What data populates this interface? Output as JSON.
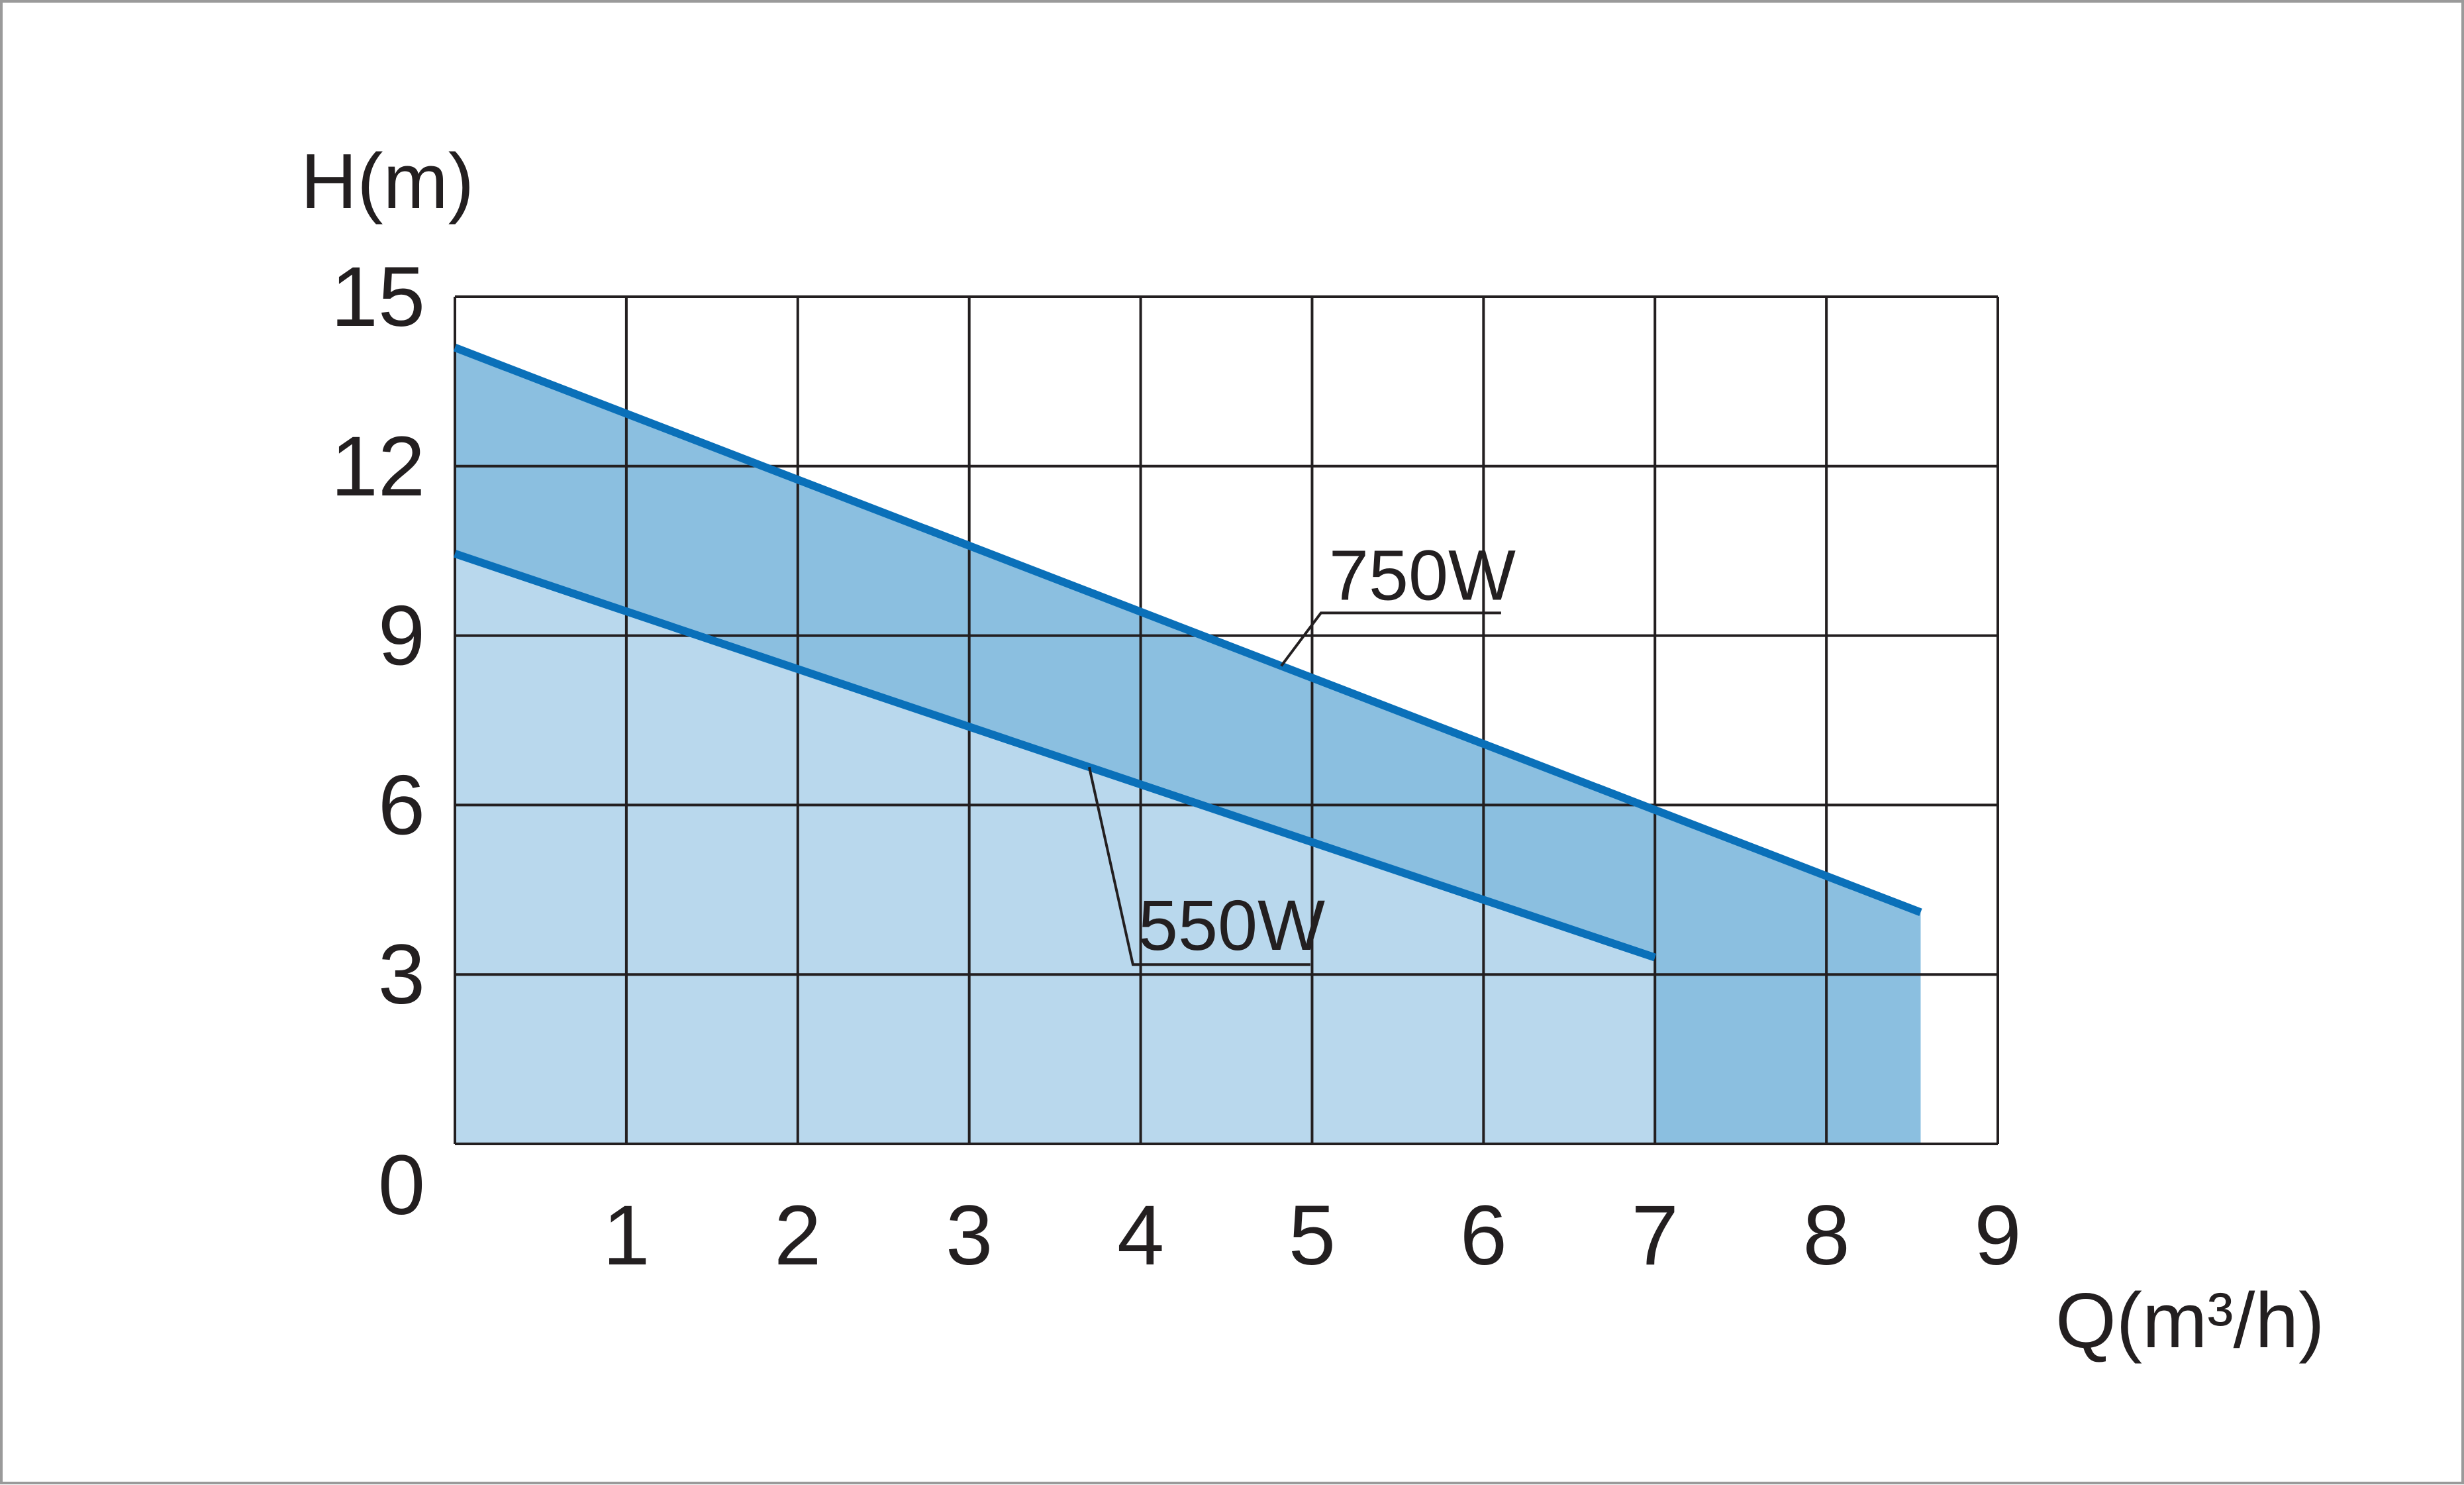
{
  "chart_data": {
    "type": "area",
    "title": "",
    "ylabel": "H(m)",
    "xlabel": "Q(m³/h)",
    "xlim": [
      0,
      9
    ],
    "ylim": [
      0,
      15
    ],
    "x_ticks": [
      "1",
      "2",
      "3",
      "4",
      "5",
      "6",
      "7",
      "8",
      "9"
    ],
    "y_ticks": [
      "0",
      "3",
      "6",
      "9",
      "12",
      "15"
    ],
    "grid": true,
    "series": [
      {
        "name": "750W",
        "x": [
          0,
          8.55
        ],
        "y": [
          14.1,
          4.1
        ],
        "color": "#0a70b9",
        "fill": "#8bbfe0"
      },
      {
        "name": "550W",
        "x": [
          0,
          7.0
        ],
        "y": [
          10.45,
          3.3
        ],
        "color": "#0a70b9",
        "fill": "#b9d8ed"
      }
    ],
    "annotations": [
      {
        "text": "750W",
        "series": "750W",
        "at_x": 4.82
      },
      {
        "text": "550W",
        "series": "550W",
        "at_x": 3.7
      }
    ]
  }
}
